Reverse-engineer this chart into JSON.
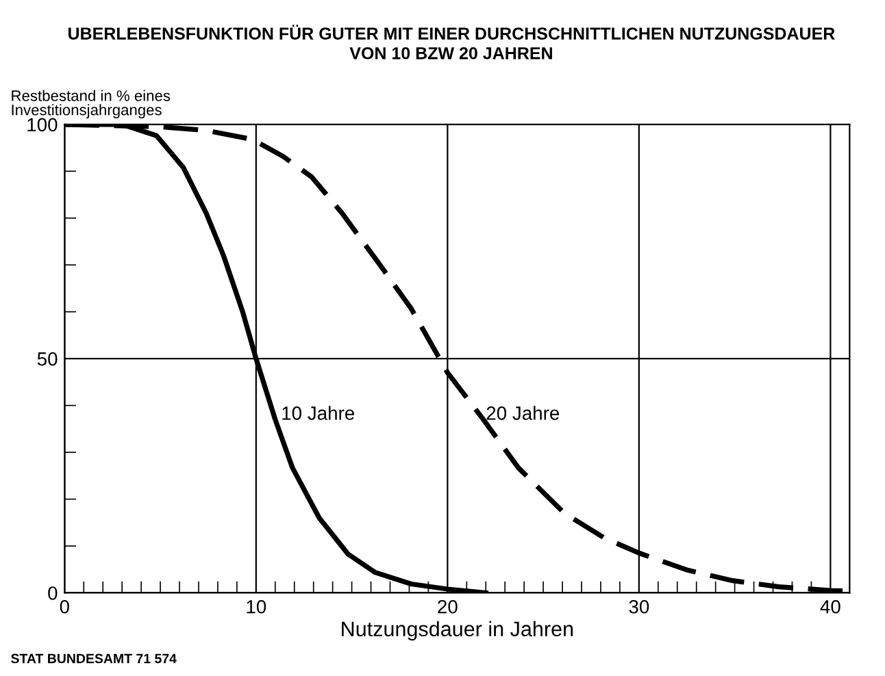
{
  "chart_data": {
    "type": "line",
    "title": "UBERLEBENSFUNKTION FÜR GUTER MIT EINER DURCHSCHNITTLICHEN NUTZUNGSDAUER\nVON 10 BZW 20 JAHREN",
    "xlabel": "Nutzungsdauer in Jahren",
    "ylabel": "Restbestand in % eines\nInvestitionsjahrganges",
    "series": [
      {
        "color": "#000000",
        "line_style": "solid",
        "x": [
          0,
          3,
          4.8,
          6.2,
          7.4,
          8.3,
          9.3,
          10,
          11,
          11.9,
          13.3,
          14.8,
          16.2,
          18.1,
          20,
          22
        ],
        "values": [
          100,
          100,
          97.6,
          90.8,
          81,
          72,
          60,
          50,
          37,
          26.7,
          16,
          8.3,
          4.4,
          1.9,
          0.8,
          0
        ]
      },
      {
        "color": "#000000",
        "line_style": "dashed",
        "x": [
          0,
          5,
          7.4,
          9.8,
          11.4,
          12.9,
          14.5,
          16.4,
          18.1,
          20,
          21.8,
          23.7,
          26.1,
          28.2,
          30,
          32.5,
          34.9,
          37.3,
          40,
          41
        ],
        "values": [
          100,
          99.5,
          98.7,
          96.8,
          93.2,
          88.8,
          81,
          70.4,
          60.7,
          47,
          37.4,
          26.7,
          17,
          11.7,
          8.5,
          4.9,
          2.6,
          1.3,
          0.5,
          0.4
        ]
      }
    ],
    "annotations": [
      {
        "text": "10 Jahre",
        "x": 11.3,
        "y": 38
      },
      {
        "text": "20 Jahre",
        "x": 22,
        "y": 38
      },
      "STAT BUNDESAMT 71 574"
    ],
    "xlim": [
      0,
      41
    ],
    "ylim": [
      0,
      100
    ],
    "xticks": [
      0,
      {
        "value": 1,
        "label": null
      },
      {
        "value": 2,
        "label": null
      },
      {
        "value": 3,
        "label": null
      },
      {
        "value": 4,
        "label": null
      },
      {
        "value": 5,
        "label": null
      },
      {
        "value": 6,
        "label": null
      },
      {
        "value": 7,
        "label": null
      },
      {
        "value": 8,
        "label": null
      },
      {
        "value": 9,
        "label": null
      },
      10,
      {
        "value": 11,
        "label": null
      },
      {
        "value": 12,
        "label": null
      },
      {
        "value": 13,
        "label": null
      },
      {
        "value": 14,
        "label": null
      },
      {
        "value": 15,
        "label": null
      },
      {
        "value": 16,
        "label": null
      },
      {
        "value": 17,
        "label": null
      },
      {
        "value": 18,
        "label": null
      },
      {
        "value": 19,
        "label": null
      },
      20,
      {
        "value": 21,
        "label": null
      },
      {
        "value": 22,
        "label": null
      },
      {
        "value": 23,
        "label": null
      },
      {
        "value": 24,
        "label": null
      },
      {
        "value": 25,
        "label": null
      },
      {
        "value": 26,
        "label": null
      },
      {
        "value": 27,
        "label": null
      },
      {
        "value": 28,
        "label": null
      },
      {
        "value": 29,
        "label": null
      },
      30,
      {
        "value": 31,
        "label": null
      },
      {
        "value": 32,
        "label": null
      },
      {
        "value": 33,
        "label": null
      },
      {
        "value": 34,
        "label": null
      },
      {
        "value": 35,
        "label": null
      },
      {
        "value": 36,
        "label": null
      },
      {
        "value": 37,
        "label": null
      },
      {
        "value": 38,
        "label": null
      },
      {
        "value": 39,
        "label": null
      },
      40
    ],
    "yticks": [
      0,
      {
        "value": 10,
        "label": null
      },
      {
        "value": 20,
        "label": null
      },
      {
        "value": 30,
        "label": null
      },
      {
        "value": 40,
        "label": null
      },
      50,
      {
        "value": 60,
        "label": null
      },
      {
        "value": 70,
        "label": null
      },
      {
        "value": 80,
        "label": null
      },
      {
        "value": 90,
        "label": null
      },
      100
    ],
    "grid": true,
    "marker": "none"
  }
}
